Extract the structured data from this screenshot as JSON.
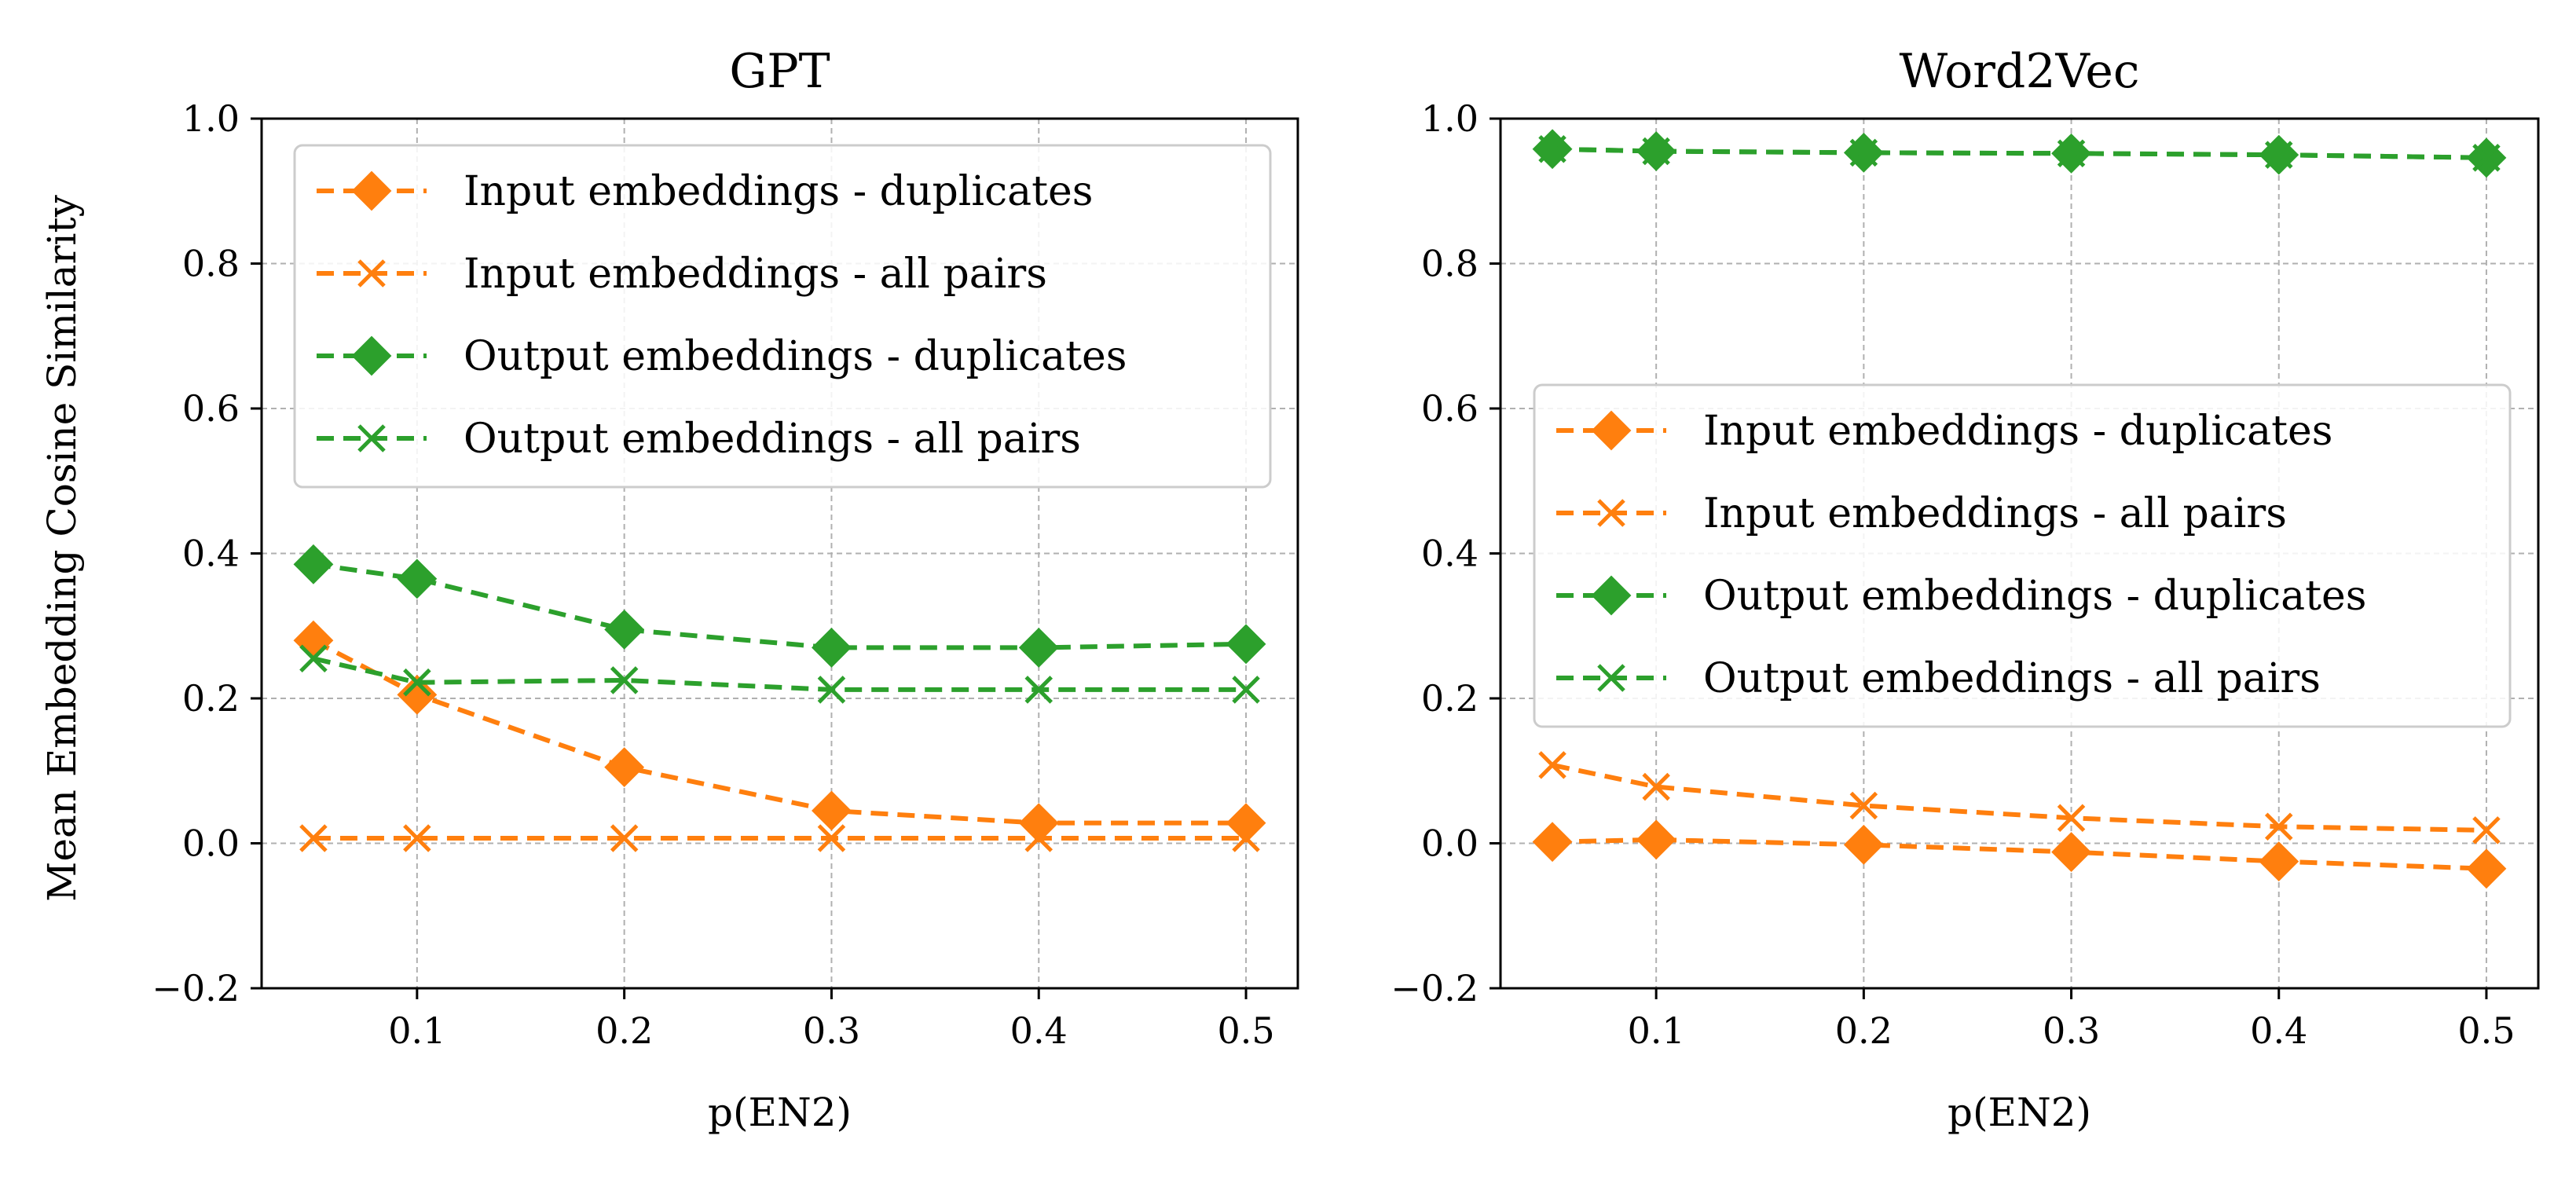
{
  "figure": {
    "shared_ylabel": "Mean Embedding Cosine Similarity"
  },
  "chart_data": [
    {
      "type": "line",
      "title": "GPT",
      "xlabel": "p(EN2)",
      "ylabel": "Mean Embedding Cosine Similarity",
      "xlim": [
        0.025,
        0.525
      ],
      "ylim": [
        -0.2,
        1.0
      ],
      "xticks": [
        0.1,
        0.2,
        0.3,
        0.4,
        0.5
      ],
      "xtick_labels": [
        "0.1",
        "0.2",
        "0.3",
        "0.4",
        "0.5"
      ],
      "yticks": [
        -0.2,
        0.0,
        0.2,
        0.4,
        0.6,
        0.8,
        1.0
      ],
      "ytick_labels": [
        "−0.2",
        "0.0",
        "0.2",
        "0.4",
        "0.6",
        "0.8",
        "1.0"
      ],
      "grid": true,
      "legend_position": "upper-left",
      "x": [
        0.05,
        0.1,
        0.2,
        0.3,
        0.4,
        0.5
      ],
      "series": [
        {
          "name": "Input embeddings - duplicates",
          "color": "#ff7f0e",
          "marker": "diamond",
          "values": [
            0.28,
            0.205,
            0.105,
            0.045,
            0.028,
            0.028
          ]
        },
        {
          "name": "Input embeddings - all pairs",
          "color": "#ff7f0e",
          "marker": "x",
          "values": [
            0.007,
            0.007,
            0.007,
            0.007,
            0.007,
            0.007
          ]
        },
        {
          "name": "Output embeddings - duplicates",
          "color": "#2ca02c",
          "marker": "diamond",
          "values": [
            0.385,
            0.365,
            0.295,
            0.27,
            0.27,
            0.275
          ]
        },
        {
          "name": "Output embeddings - all pairs",
          "color": "#2ca02c",
          "marker": "x",
          "values": [
            0.255,
            0.222,
            0.225,
            0.212,
            0.212,
            0.212
          ]
        }
      ]
    },
    {
      "type": "line",
      "title": "Word2Vec",
      "xlabel": "p(EN2)",
      "ylabel": "",
      "xlim": [
        0.025,
        0.525
      ],
      "ylim": [
        -0.2,
        1.0
      ],
      "xticks": [
        0.1,
        0.2,
        0.3,
        0.4,
        0.5
      ],
      "xtick_labels": [
        "0.1",
        "0.2",
        "0.3",
        "0.4",
        "0.5"
      ],
      "yticks": [
        -0.2,
        0.0,
        0.2,
        0.4,
        0.6,
        0.8,
        1.0
      ],
      "ytick_labels": [
        "−0.2",
        "0.0",
        "0.2",
        "0.4",
        "0.6",
        "0.8",
        "1.0"
      ],
      "grid": true,
      "legend_position": "center-left",
      "x": [
        0.05,
        0.1,
        0.2,
        0.3,
        0.4,
        0.5
      ],
      "series": [
        {
          "name": "Input embeddings - duplicates",
          "color": "#ff7f0e",
          "marker": "diamond",
          "values": [
            0.002,
            0.005,
            -0.002,
            -0.012,
            -0.025,
            -0.035
          ]
        },
        {
          "name": "Input embeddings - all pairs",
          "color": "#ff7f0e",
          "marker": "x",
          "values": [
            0.108,
            0.078,
            0.052,
            0.035,
            0.023,
            0.018
          ]
        },
        {
          "name": "Output embeddings - duplicates",
          "color": "#2ca02c",
          "marker": "diamond",
          "values": [
            0.958,
            0.955,
            0.953,
            0.952,
            0.95,
            0.946
          ]
        },
        {
          "name": "Output embeddings - all pairs",
          "color": "#2ca02c",
          "marker": "x",
          "values": [
            0.958,
            0.955,
            0.953,
            0.952,
            0.95,
            0.946
          ]
        }
      ]
    }
  ]
}
